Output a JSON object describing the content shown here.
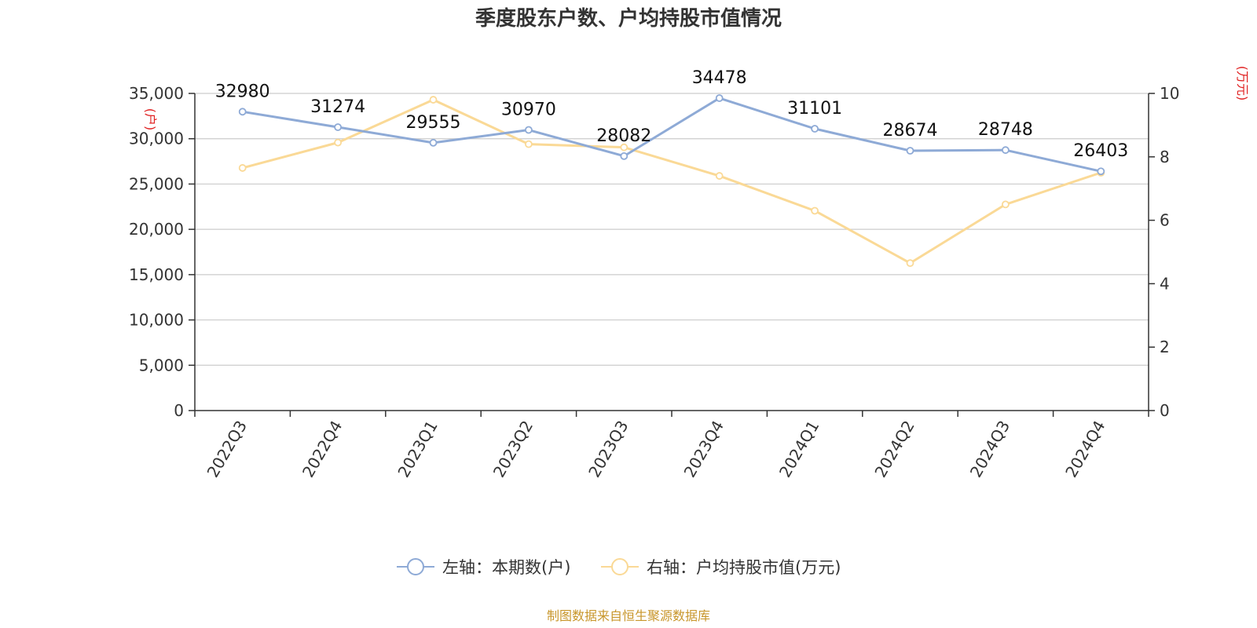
{
  "chart_data": {
    "type": "line",
    "title": "季度股东户数、户均持股市值情况",
    "categories": [
      "2022Q3",
      "2022Q4",
      "2023Q1",
      "2023Q2",
      "2023Q3",
      "2023Q4",
      "2024Q1",
      "2024Q2",
      "2024Q3",
      "2024Q4"
    ],
    "y_left": {
      "unit": "(户)",
      "range": [
        0,
        35000
      ],
      "ticks": [
        0,
        5000,
        10000,
        15000,
        20000,
        25000,
        30000,
        35000
      ],
      "tick_labels": [
        "0",
        "5,000",
        "10,000",
        "15,000",
        "20,000",
        "25,000",
        "30,000",
        "35,000"
      ]
    },
    "y_right": {
      "unit": "(万元)",
      "range": [
        0,
        10
      ],
      "ticks": [
        0,
        2,
        4,
        6,
        8,
        10
      ],
      "tick_labels": [
        "0",
        "2",
        "4",
        "6",
        "8",
        "10"
      ]
    },
    "series": [
      {
        "name": "左轴：本期数(户)",
        "axis": "left",
        "color": "#8eaad6",
        "values": [
          32980,
          31274,
          29555,
          30970,
          28082,
          34478,
          31101,
          28674,
          28748,
          26403
        ],
        "labels": [
          "32980",
          "31274",
          "29555",
          "30970",
          "28082",
          "34478",
          "31101",
          "28674",
          "28748",
          "26403"
        ]
      },
      {
        "name": "右轴：户均持股市值(万元)",
        "axis": "right",
        "color": "#fad996",
        "values": [
          7.65,
          8.45,
          9.8,
          8.4,
          8.3,
          7.4,
          6.3,
          4.65,
          6.5,
          7.5
        ]
      }
    ],
    "grid": true,
    "legend": "bottom-center",
    "source": "制图数据来自恒生聚源数据库"
  }
}
